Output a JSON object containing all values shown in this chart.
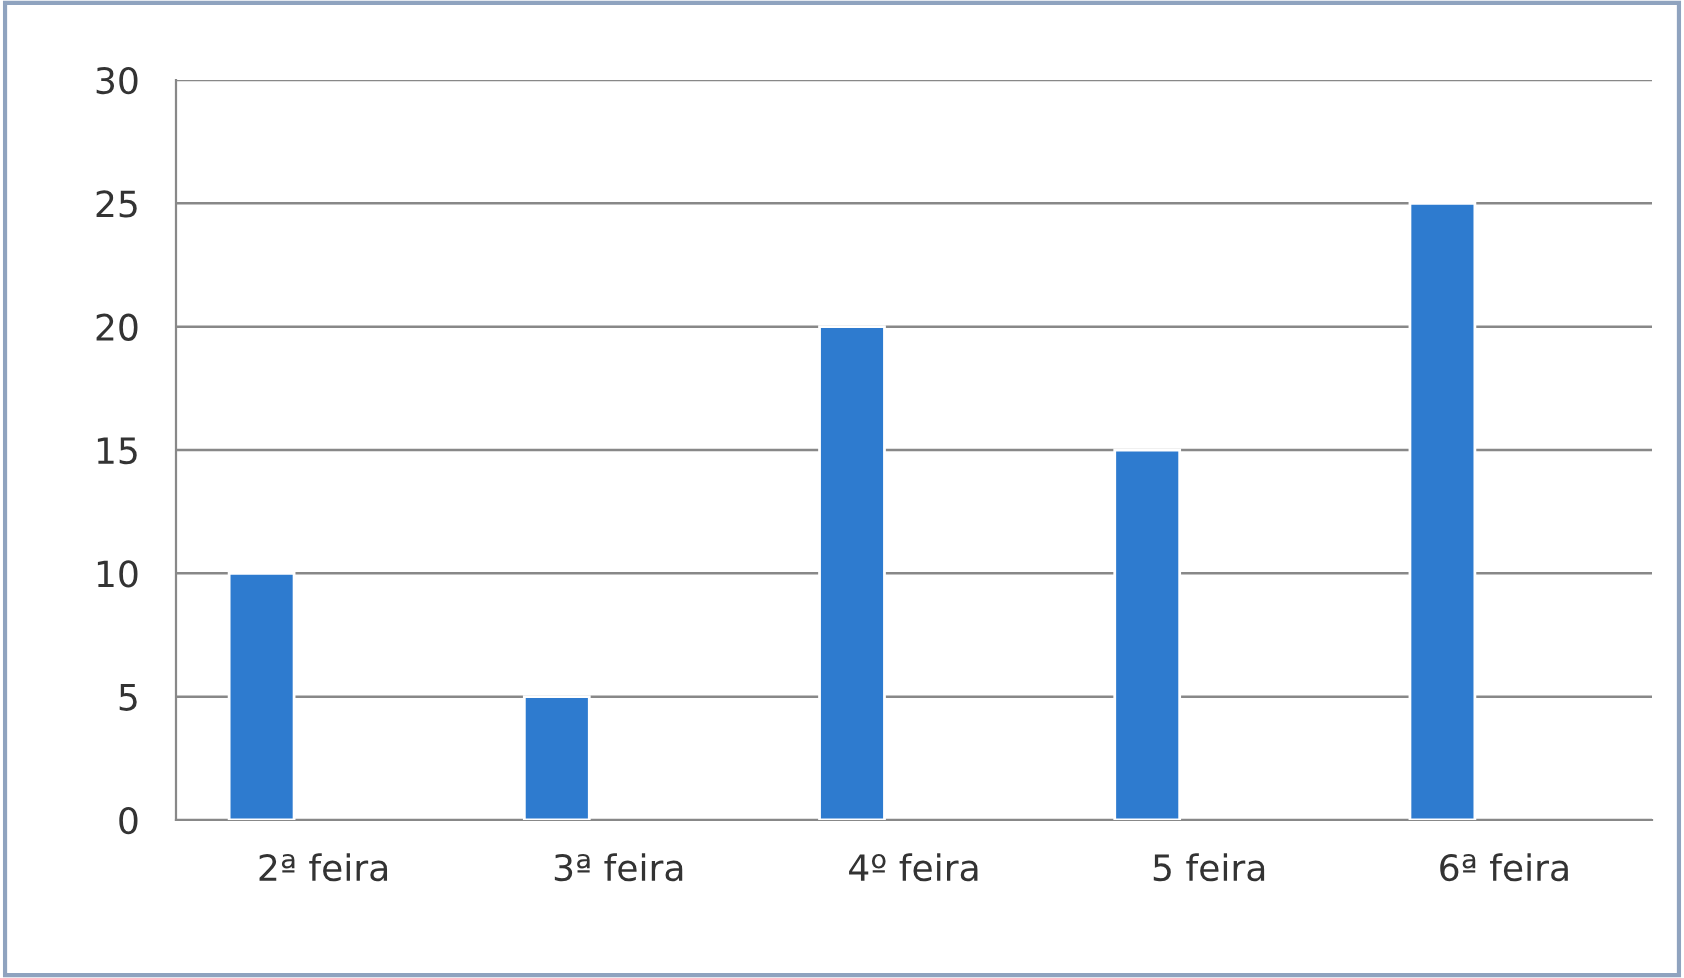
{
  "chart_data": {
    "type": "bar",
    "categories": [
      "2ª feira",
      "3ª feira",
      "4º feira",
      "5 feira",
      "6ª feira"
    ],
    "series": [
      {
        "color": "#2e7bcf",
        "values": [
          10,
          5,
          20,
          15,
          25
        ]
      }
    ],
    "ylim": [
      0,
      30
    ],
    "yticks": [
      0,
      5,
      10,
      15,
      20,
      25,
      30
    ],
    "grid": "y",
    "legend": false
  }
}
